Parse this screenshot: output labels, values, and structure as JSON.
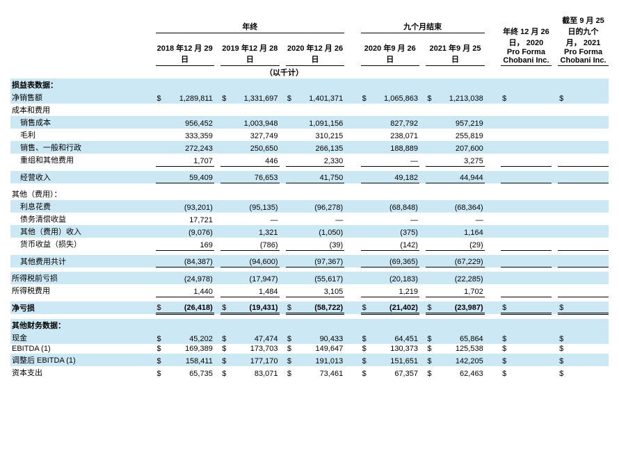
{
  "headers": {
    "grp_annual": "年终",
    "grp_nine": "九个月结束",
    "c1": "2018 年12 月 29日",
    "c2": "2019 年12 月 28日",
    "c3": "2020 年12 月 26日",
    "c4": "2020 年9 月 26日",
    "c5": "2021 年9 月 25日",
    "c6": "年终 12 月 26 日， 2020 Pro Forma Chobani Inc.",
    "c7": "截至 9 月 25 日的九个 月， 2021 Pro Forma Chobani Inc.",
    "unit": "（以千计）"
  },
  "section1": "损益表数据：",
  "section2": "其他财务数据：",
  "cur": "$",
  "rows": {
    "net_sales": {
      "label": "净销售额",
      "v": [
        "1,289,811",
        "1,331,697",
        "1,401,371",
        "1,065,863",
        "1,213,038"
      ],
      "cur": true,
      "band": true
    },
    "costs_hdr": {
      "label": "成本和费用"
    },
    "cogs": {
      "label": "销售成本",
      "v": [
        "956,452",
        "1,003,948",
        "1,091,156",
        "827,792",
        "957,219"
      ],
      "band": true,
      "indent": true
    },
    "gross": {
      "label": "毛利",
      "v": [
        "333,359",
        "327,749",
        "310,215",
        "238,071",
        "255,819"
      ],
      "indent": true
    },
    "sga": {
      "label": "销售、一般和行政",
      "v": [
        "272,243",
        "250,650",
        "266,135",
        "188,889",
        "207,600"
      ],
      "band": true,
      "indent": true
    },
    "restr": {
      "label": "重组和其他费用",
      "v": [
        "1,707",
        "446",
        "2,330",
        "—",
        "3,275"
      ],
      "indent": true,
      "bb": true
    },
    "opinc": {
      "label": "经营收入",
      "v": [
        "59,409",
        "76,653",
        "41,750",
        "49,182",
        "44,944"
      ],
      "band": true,
      "indent": true,
      "bb": true
    },
    "other_hdr": {
      "label": "其他（费用）："
    },
    "interest": {
      "label": "利息花费",
      "v": [
        "(93,201)",
        "(95,135)",
        "(96,278)",
        "(68,848)",
        "(68,364)"
      ],
      "band": true,
      "indent": true
    },
    "debt": {
      "label": "债务清偿收益",
      "v": [
        "17,721",
        "—",
        "—",
        "—",
        "—"
      ],
      "indent": true
    },
    "other_inc": {
      "label": "其他（费用）收入",
      "v": [
        "(9,076)",
        "1,321",
        "(1,050)",
        "(375)",
        "1,164"
      ],
      "band": true,
      "indent": true
    },
    "fx": {
      "label": "货币收益（损失）",
      "v": [
        "169",
        "(786)",
        "(39)",
        "(142)",
        "(29)"
      ],
      "indent": true,
      "bb": true
    },
    "other_tot": {
      "label": "其他费用共计",
      "v": [
        "(84,387)",
        "(94,600)",
        "(97,367)",
        "(69,365)",
        "(67,229)"
      ],
      "band": true,
      "indent": true,
      "bb": true
    },
    "pretax": {
      "label": "所得税前亏损",
      "v": [
        "(24,978)",
        "(17,947)",
        "(55,617)",
        "(20,183)",
        "(22,285)"
      ],
      "band": true
    },
    "tax": {
      "label": "所得税费用",
      "v": [
        "1,440",
        "1,484",
        "3,105",
        "1,219",
        "1,702"
      ],
      "bb": true
    },
    "netloss": {
      "label": "净亏损",
      "v": [
        "(26,418)",
        "(19,431)",
        "(58,722)",
        "(21,402)",
        "(23,987)"
      ],
      "band": true,
      "bold": true,
      "cur": true,
      "dbl": true
    },
    "cash": {
      "label": "现金",
      "v": [
        "45,202",
        "47,474",
        "90,433",
        "64,451",
        "65,864"
      ],
      "band": true,
      "cur": true
    },
    "ebitda": {
      "label": "EBITDA (1)",
      "v": [
        "169,389",
        "173,703",
        "149,647",
        "130,373",
        "125,538"
      ],
      "cur": true
    },
    "adjebitda": {
      "label": "调整后 EBITDA (1)",
      "v": [
        "158,411",
        "177,170",
        "191,013",
        "151,651",
        "142,205"
      ],
      "band": true,
      "cur": true
    },
    "capex": {
      "label": "资本支出",
      "v": [
        "65,735",
        "83,071",
        "73,461",
        "67,357",
        "62,463"
      ],
      "cur": true
    }
  }
}
